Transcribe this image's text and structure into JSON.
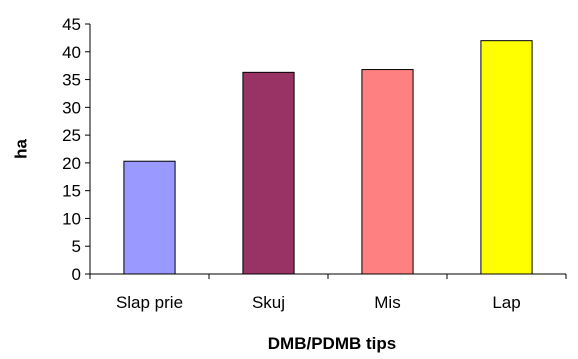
{
  "chart_data": {
    "type": "bar",
    "title": "",
    "xlabel": "DMB/PDMB tips",
    "ylabel": "ha",
    "categories": [
      "Slap prie",
      "Skuj",
      "Mis",
      "Lap"
    ],
    "values": [
      20.3,
      36.3,
      36.8,
      42.0
    ],
    "bar_colors": [
      "#9999FF",
      "#993366",
      "#FF8080",
      "#FFFF00"
    ],
    "ylim": [
      0,
      45
    ],
    "yticks": [
      0,
      5,
      10,
      15,
      20,
      25,
      30,
      35,
      40,
      45
    ],
    "grid": false,
    "legend": "none"
  }
}
